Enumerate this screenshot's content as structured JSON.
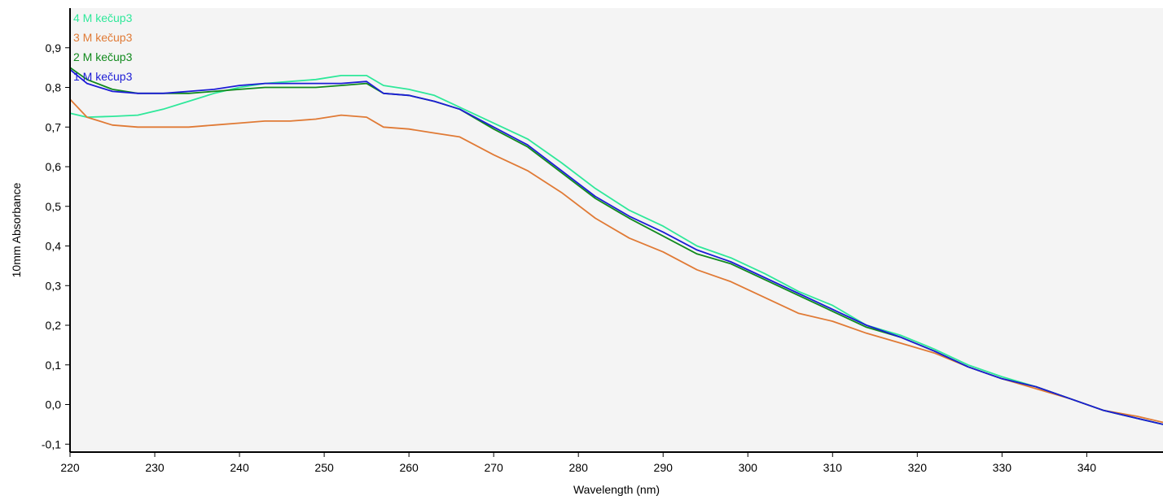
{
  "chart_data": {
    "type": "line",
    "title": "",
    "xlabel": "Wavelength (nm)",
    "ylabel": "10mm Absorbance",
    "xlim": [
      220,
      349
    ],
    "ylim": [
      -0.12,
      1.0
    ],
    "x_ticks": [
      220,
      230,
      240,
      250,
      260,
      270,
      280,
      290,
      300,
      310,
      320,
      330,
      340
    ],
    "x_tick_labels": [
      "220",
      "230",
      "240",
      "250",
      "260",
      "270",
      "280",
      "290",
      "300",
      "310",
      "320",
      "330",
      "340"
    ],
    "y_ticks": [
      -0.1,
      0.0,
      0.1,
      0.2,
      0.3,
      0.4,
      0.5,
      0.6,
      0.7,
      0.8,
      0.9
    ],
    "y_tick_labels": [
      "-0,1",
      "0,0",
      "0,1",
      "0,2",
      "0,3",
      "0,4",
      "0,5",
      "0,6",
      "0,7",
      "0,8",
      "0,9"
    ],
    "grid": false,
    "legend_position": "top-left",
    "plot_background": "#f4f4f4",
    "series": [
      {
        "name": "4 M kečup3",
        "color": "#2ee89a",
        "x": [
          220,
          222,
          225,
          228,
          231,
          234,
          237,
          240,
          243,
          246,
          249,
          252,
          255,
          257,
          260,
          263,
          266,
          270,
          274,
          278,
          282,
          286,
          290,
          294,
          298,
          302,
          306,
          310,
          314,
          318,
          322,
          326,
          330,
          334,
          338,
          342,
          346,
          349
        ],
        "y": [
          0.735,
          0.725,
          0.727,
          0.73,
          0.745,
          0.765,
          0.785,
          0.8,
          0.81,
          0.815,
          0.82,
          0.83,
          0.83,
          0.805,
          0.795,
          0.78,
          0.75,
          0.71,
          0.67,
          0.61,
          0.545,
          0.49,
          0.45,
          0.4,
          0.37,
          0.33,
          0.285,
          0.25,
          0.2,
          0.175,
          0.14,
          0.1,
          0.07,
          0.045,
          0.015,
          -0.015,
          -0.035,
          -0.05
        ]
      },
      {
        "name": "3 M kečup3",
        "color": "#e07a35",
        "x": [
          220,
          222,
          225,
          228,
          231,
          234,
          237,
          240,
          243,
          246,
          249,
          252,
          255,
          257,
          260,
          263,
          266,
          270,
          274,
          278,
          282,
          286,
          290,
          294,
          298,
          302,
          306,
          310,
          314,
          318,
          322,
          326,
          330,
          334,
          338,
          342,
          346,
          349
        ],
        "y": [
          0.77,
          0.725,
          0.705,
          0.7,
          0.7,
          0.7,
          0.705,
          0.71,
          0.715,
          0.715,
          0.72,
          0.73,
          0.725,
          0.7,
          0.695,
          0.685,
          0.675,
          0.63,
          0.59,
          0.535,
          0.47,
          0.42,
          0.385,
          0.34,
          0.31,
          0.27,
          0.23,
          0.21,
          0.18,
          0.155,
          0.13,
          0.095,
          0.065,
          0.04,
          0.015,
          -0.015,
          -0.03,
          -0.045
        ]
      },
      {
        "name": "2 M kečup3",
        "color": "#118a1d",
        "x": [
          220,
          222,
          225,
          228,
          231,
          234,
          237,
          240,
          243,
          246,
          249,
          252,
          255,
          257,
          260,
          263,
          266,
          270,
          274,
          278,
          282,
          286,
          290,
          294,
          298,
          302,
          306,
          310,
          314,
          318,
          322,
          326,
          330,
          334,
          338,
          342,
          346,
          349
        ],
        "y": [
          0.85,
          0.82,
          0.795,
          0.785,
          0.785,
          0.785,
          0.79,
          0.795,
          0.8,
          0.8,
          0.8,
          0.805,
          0.81,
          0.785,
          0.78,
          0.765,
          0.745,
          0.695,
          0.65,
          0.585,
          0.52,
          0.47,
          0.425,
          0.38,
          0.355,
          0.315,
          0.275,
          0.235,
          0.195,
          0.17,
          0.135,
          0.095,
          0.065,
          0.045,
          0.015,
          -0.015,
          -0.035,
          -0.05
        ]
      },
      {
        "name": "1 M kečup3",
        "color": "#1c1cd6",
        "x": [
          220,
          222,
          225,
          228,
          231,
          234,
          237,
          240,
          243,
          246,
          249,
          252,
          255,
          257,
          260,
          263,
          266,
          270,
          274,
          278,
          282,
          286,
          290,
          294,
          298,
          302,
          306,
          310,
          314,
          318,
          322,
          326,
          330,
          334,
          338,
          342,
          346,
          349
        ],
        "y": [
          0.845,
          0.81,
          0.79,
          0.785,
          0.785,
          0.79,
          0.795,
          0.805,
          0.81,
          0.81,
          0.81,
          0.81,
          0.815,
          0.785,
          0.78,
          0.765,
          0.745,
          0.7,
          0.655,
          0.59,
          0.525,
          0.475,
          0.435,
          0.39,
          0.36,
          0.32,
          0.28,
          0.24,
          0.2,
          0.17,
          0.135,
          0.095,
          0.065,
          0.045,
          0.015,
          -0.015,
          -0.035,
          -0.05
        ]
      }
    ]
  }
}
